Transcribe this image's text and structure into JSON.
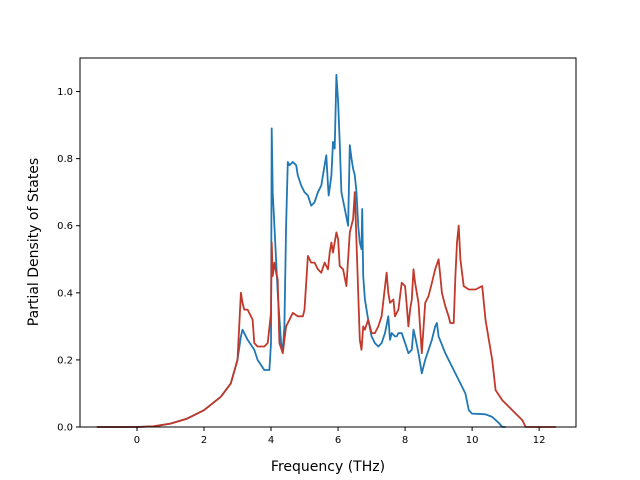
{
  "chart_data": {
    "type": "line",
    "title": "",
    "xlabel": "Frequency (THz)",
    "ylabel": "Partial Density of States",
    "xlim": [
      -1.7,
      13.1
    ],
    "ylim": [
      0.0,
      1.1
    ],
    "xticks": [
      0,
      2,
      4,
      6,
      8,
      10,
      12
    ],
    "yticks": [
      0.0,
      0.2,
      0.4,
      0.6,
      0.8,
      1.0
    ],
    "xtick_labels": [
      "0",
      "2",
      "4",
      "6",
      "8",
      "10",
      "12"
    ],
    "ytick_labels": [
      "0.0",
      "0.2",
      "0.4",
      "0.6",
      "0.8",
      "1.0"
    ],
    "grid": false,
    "legend": false,
    "series": [
      {
        "color": "#1f77b4",
        "points": [
          [
            -1.2,
            0.0
          ],
          [
            0.0,
            0.0
          ],
          [
            0.5,
            0.002
          ],
          [
            1.0,
            0.01
          ],
          [
            1.5,
            0.025
          ],
          [
            2.0,
            0.05
          ],
          [
            2.5,
            0.09
          ],
          [
            2.8,
            0.13
          ],
          [
            3.0,
            0.2
          ],
          [
            3.1,
            0.27
          ],
          [
            3.15,
            0.29
          ],
          [
            3.3,
            0.26
          ],
          [
            3.5,
            0.23
          ],
          [
            3.6,
            0.2
          ],
          [
            3.8,
            0.17
          ],
          [
            3.95,
            0.17
          ],
          [
            4.0,
            0.25
          ],
          [
            4.02,
            0.89
          ],
          [
            4.05,
            0.7
          ],
          [
            4.1,
            0.6
          ],
          [
            4.2,
            0.4
          ],
          [
            4.3,
            0.25
          ],
          [
            4.35,
            0.23
          ],
          [
            4.4,
            0.3
          ],
          [
            4.45,
            0.6
          ],
          [
            4.5,
            0.79
          ],
          [
            4.55,
            0.78
          ],
          [
            4.65,
            0.79
          ],
          [
            4.75,
            0.78
          ],
          [
            4.8,
            0.75
          ],
          [
            4.9,
            0.72
          ],
          [
            5.0,
            0.7
          ],
          [
            5.1,
            0.69
          ],
          [
            5.2,
            0.66
          ],
          [
            5.3,
            0.67
          ],
          [
            5.4,
            0.7
          ],
          [
            5.5,
            0.72
          ],
          [
            5.6,
            0.78
          ],
          [
            5.65,
            0.81
          ],
          [
            5.7,
            0.72
          ],
          [
            5.72,
            0.69
          ],
          [
            5.8,
            0.75
          ],
          [
            5.85,
            0.85
          ],
          [
            5.9,
            0.83
          ],
          [
            5.95,
            1.05
          ],
          [
            6.0,
            0.97
          ],
          [
            6.05,
            0.85
          ],
          [
            6.1,
            0.7
          ],
          [
            6.2,
            0.65
          ],
          [
            6.3,
            0.6
          ],
          [
            6.35,
            0.84
          ],
          [
            6.4,
            0.8
          ],
          [
            6.45,
            0.77
          ],
          [
            6.5,
            0.75
          ],
          [
            6.55,
            0.7
          ],
          [
            6.6,
            0.6
          ],
          [
            6.65,
            0.55
          ],
          [
            6.7,
            0.53
          ],
          [
            6.72,
            0.65
          ],
          [
            6.75,
            0.45
          ],
          [
            6.8,
            0.38
          ],
          [
            6.9,
            0.32
          ],
          [
            7.0,
            0.27
          ],
          [
            7.1,
            0.25
          ],
          [
            7.2,
            0.24
          ],
          [
            7.3,
            0.25
          ],
          [
            7.4,
            0.28
          ],
          [
            7.5,
            0.33
          ],
          [
            7.55,
            0.26
          ],
          [
            7.6,
            0.28
          ],
          [
            7.7,
            0.27
          ],
          [
            7.75,
            0.27
          ],
          [
            7.8,
            0.28
          ],
          [
            7.9,
            0.28
          ],
          [
            8.0,
            0.25
          ],
          [
            8.1,
            0.22
          ],
          [
            8.2,
            0.23
          ],
          [
            8.25,
            0.29
          ],
          [
            8.3,
            0.27
          ],
          [
            8.4,
            0.22
          ],
          [
            8.5,
            0.16
          ],
          [
            8.6,
            0.2
          ],
          [
            8.8,
            0.26
          ],
          [
            8.9,
            0.3
          ],
          [
            8.95,
            0.31
          ],
          [
            9.0,
            0.27
          ],
          [
            9.2,
            0.22
          ],
          [
            9.4,
            0.18
          ],
          [
            9.6,
            0.14
          ],
          [
            9.8,
            0.1
          ],
          [
            9.9,
            0.05
          ],
          [
            10.0,
            0.04
          ],
          [
            10.4,
            0.038
          ],
          [
            10.6,
            0.03
          ],
          [
            10.8,
            0.012
          ],
          [
            10.9,
            0.0
          ],
          [
            11.0,
            0.0
          ]
        ]
      },
      {
        "color": "#c0392b",
        "points": [
          [
            -1.2,
            0.0
          ],
          [
            0.0,
            0.0
          ],
          [
            0.5,
            0.002
          ],
          [
            1.0,
            0.01
          ],
          [
            1.5,
            0.025
          ],
          [
            2.0,
            0.05
          ],
          [
            2.5,
            0.09
          ],
          [
            2.8,
            0.13
          ],
          [
            3.0,
            0.2
          ],
          [
            3.05,
            0.3
          ],
          [
            3.1,
            0.4
          ],
          [
            3.15,
            0.37
          ],
          [
            3.2,
            0.35
          ],
          [
            3.3,
            0.35
          ],
          [
            3.45,
            0.32
          ],
          [
            3.5,
            0.25
          ],
          [
            3.6,
            0.24
          ],
          [
            3.8,
            0.24
          ],
          [
            3.9,
            0.25
          ],
          [
            4.0,
            0.34
          ],
          [
            4.02,
            0.55
          ],
          [
            4.05,
            0.45
          ],
          [
            4.1,
            0.49
          ],
          [
            4.15,
            0.46
          ],
          [
            4.2,
            0.44
          ],
          [
            4.25,
            0.25
          ],
          [
            4.35,
            0.22
          ],
          [
            4.45,
            0.3
          ],
          [
            4.55,
            0.32
          ],
          [
            4.65,
            0.34
          ],
          [
            4.8,
            0.33
          ],
          [
            4.95,
            0.33
          ],
          [
            5.0,
            0.35
          ],
          [
            5.05,
            0.43
          ],
          [
            5.1,
            0.51
          ],
          [
            5.2,
            0.49
          ],
          [
            5.3,
            0.49
          ],
          [
            5.4,
            0.47
          ],
          [
            5.5,
            0.46
          ],
          [
            5.6,
            0.49
          ],
          [
            5.65,
            0.48
          ],
          [
            5.7,
            0.47
          ],
          [
            5.75,
            0.52
          ],
          [
            5.8,
            0.55
          ],
          [
            5.85,
            0.52
          ],
          [
            5.95,
            0.58
          ],
          [
            6.0,
            0.56
          ],
          [
            6.05,
            0.48
          ],
          [
            6.15,
            0.47
          ],
          [
            6.25,
            0.42
          ],
          [
            6.35,
            0.58
          ],
          [
            6.45,
            0.62
          ],
          [
            6.5,
            0.7
          ],
          [
            6.55,
            0.55
          ],
          [
            6.6,
            0.4
          ],
          [
            6.65,
            0.26
          ],
          [
            6.7,
            0.23
          ],
          [
            6.75,
            0.3
          ],
          [
            6.8,
            0.29
          ],
          [
            6.9,
            0.32
          ],
          [
            7.0,
            0.28
          ],
          [
            7.1,
            0.28
          ],
          [
            7.2,
            0.3
          ],
          [
            7.3,
            0.33
          ],
          [
            7.45,
            0.46
          ],
          [
            7.5,
            0.4
          ],
          [
            7.55,
            0.37
          ],
          [
            7.65,
            0.38
          ],
          [
            7.7,
            0.33
          ],
          [
            7.8,
            0.35
          ],
          [
            7.9,
            0.43
          ],
          [
            8.0,
            0.42
          ],
          [
            8.05,
            0.36
          ],
          [
            8.1,
            0.3
          ],
          [
            8.15,
            0.35
          ],
          [
            8.2,
            0.38
          ],
          [
            8.25,
            0.47
          ],
          [
            8.3,
            0.43
          ],
          [
            8.4,
            0.37
          ],
          [
            8.5,
            0.22
          ],
          [
            8.6,
            0.37
          ],
          [
            8.7,
            0.39
          ],
          [
            8.8,
            0.43
          ],
          [
            8.9,
            0.47
          ],
          [
            9.0,
            0.5
          ],
          [
            9.05,
            0.45
          ],
          [
            9.1,
            0.4
          ],
          [
            9.2,
            0.36
          ],
          [
            9.3,
            0.33
          ],
          [
            9.35,
            0.31
          ],
          [
            9.45,
            0.31
          ],
          [
            9.5,
            0.45
          ],
          [
            9.55,
            0.55
          ],
          [
            9.6,
            0.6
          ],
          [
            9.65,
            0.5
          ],
          [
            9.75,
            0.42
          ],
          [
            9.9,
            0.41
          ],
          [
            10.1,
            0.41
          ],
          [
            10.3,
            0.42
          ],
          [
            10.4,
            0.32
          ],
          [
            10.6,
            0.2
          ],
          [
            10.7,
            0.11
          ],
          [
            10.9,
            0.08
          ],
          [
            11.1,
            0.06
          ],
          [
            11.3,
            0.04
          ],
          [
            11.5,
            0.02
          ],
          [
            11.6,
            0.0
          ],
          [
            12.5,
            0.0
          ]
        ]
      }
    ]
  }
}
